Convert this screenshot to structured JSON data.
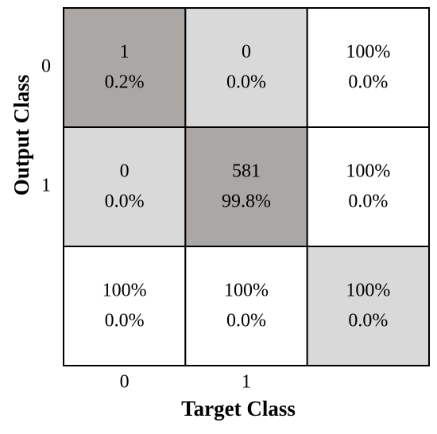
{
  "chart_data": {
    "type": "confusion-matrix",
    "xlabel": "Target Class",
    "ylabel": "Output Class",
    "x_categories": [
      "0",
      "1"
    ],
    "y_categories": [
      "0",
      "1"
    ],
    "cells": [
      [
        [
          1,
          "0.2%"
        ],
        [
          0,
          "0.0%"
        ],
        [
          "100%",
          "0.0%"
        ]
      ],
      [
        [
          0,
          "0.0%"
        ],
        [
          581,
          "99.8%"
        ],
        [
          "100%",
          "0.0%"
        ]
      ],
      [
        [
          "100%",
          "0.0%"
        ],
        [
          "100%",
          "0.0%"
        ],
        [
          "100%",
          "0.0%"
        ]
      ]
    ]
  }
}
